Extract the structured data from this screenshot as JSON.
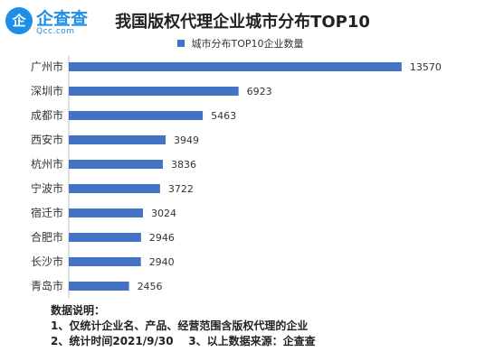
{
  "logo": {
    "mark": "企",
    "text": "企查查",
    "sub": "Qcc.com"
  },
  "chart_data": {
    "type": "bar",
    "orientation": "horizontal",
    "title": "我国版权代理企业城市分布TOP10",
    "categories": [
      "广州市",
      "深圳市",
      "成都市",
      "西安市",
      "杭州市",
      "宁波市",
      "宿迁市",
      "合肥市",
      "长沙市",
      "青岛市"
    ],
    "series": [
      {
        "name": "城市分布TOP10企业数量",
        "values": [
          13570,
          6923,
          5463,
          3949,
          3836,
          3722,
          3024,
          2946,
          2940,
          2456
        ]
      }
    ],
    "xlim": [
      0,
      14000
    ],
    "grid": false,
    "legend_position": "top",
    "bar_color": "#4472c4"
  },
  "notes": {
    "heading": "数据说明：",
    "line1": "1、仅统计企业名、产品、经营范围含版权代理的企业",
    "line2": "2、统计时间2021/9/30    3、以上数据来源：企查查"
  }
}
